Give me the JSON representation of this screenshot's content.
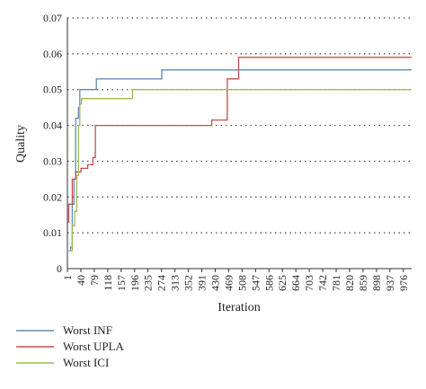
{
  "chart_data": {
    "type": "line",
    "title": "",
    "xlabel": "Iteration",
    "ylabel": "Quality",
    "xlim": [
      1,
      1000
    ],
    "ylim": [
      0,
      0.07
    ],
    "x_ticks": [
      1,
      40,
      79,
      118,
      157,
      196,
      235,
      274,
      313,
      352,
      391,
      430,
      469,
      508,
      547,
      586,
      625,
      664,
      703,
      742,
      781,
      820,
      859,
      898,
      937,
      976
    ],
    "y_ticks": [
      0,
      0.01,
      0.02,
      0.03,
      0.04,
      0.05,
      0.06,
      0.07
    ],
    "y_tick_labels": [
      "0",
      "0.01",
      "0.02",
      "0.03",
      "0.04",
      "0.05",
      "0.06",
      "0.07"
    ],
    "grid": "horizontal dotted",
    "legend_position": "bottom-left",
    "series": [
      {
        "name": "Worst INF",
        "color": "#5b8db8",
        "points": [
          [
            1,
            0.005
          ],
          [
            10,
            0.005
          ],
          [
            10,
            0.006
          ],
          [
            15,
            0.006
          ],
          [
            15,
            0.018
          ],
          [
            20,
            0.018
          ],
          [
            20,
            0.025
          ],
          [
            25,
            0.025
          ],
          [
            25,
            0.042
          ],
          [
            33,
            0.042
          ],
          [
            33,
            0.045
          ],
          [
            37,
            0.045
          ],
          [
            37,
            0.05
          ],
          [
            85,
            0.05
          ],
          [
            85,
            0.053
          ],
          [
            275,
            0.053
          ],
          [
            275,
            0.0555
          ],
          [
            1000,
            0.0555
          ]
        ]
      },
      {
        "name": "Worst UPLA",
        "color": "#c0504d",
        "points": [
          [
            1,
            0.013
          ],
          [
            5,
            0.013
          ],
          [
            5,
            0.018
          ],
          [
            15,
            0.018
          ],
          [
            15,
            0.025
          ],
          [
            25,
            0.025
          ],
          [
            25,
            0.027
          ],
          [
            40,
            0.027
          ],
          [
            40,
            0.028
          ],
          [
            60,
            0.028
          ],
          [
            60,
            0.029
          ],
          [
            75,
            0.029
          ],
          [
            75,
            0.031
          ],
          [
            82,
            0.031
          ],
          [
            82,
            0.04
          ],
          [
            420,
            0.04
          ],
          [
            420,
            0.0415
          ],
          [
            465,
            0.0415
          ],
          [
            465,
            0.053
          ],
          [
            498,
            0.053
          ],
          [
            498,
            0.059
          ],
          [
            1000,
            0.059
          ]
        ]
      },
      {
        "name": "Worst ICI",
        "color": "#9bbb59",
        "points": [
          [
            1,
            0.005
          ],
          [
            15,
            0.005
          ],
          [
            15,
            0.012
          ],
          [
            22,
            0.012
          ],
          [
            22,
            0.016
          ],
          [
            28,
            0.016
          ],
          [
            28,
            0.026
          ],
          [
            33,
            0.026
          ],
          [
            33,
            0.04
          ],
          [
            37,
            0.04
          ],
          [
            37,
            0.046
          ],
          [
            42,
            0.046
          ],
          [
            42,
            0.0475
          ],
          [
            190,
            0.0475
          ],
          [
            190,
            0.05
          ],
          [
            1000,
            0.05
          ]
        ]
      }
    ]
  }
}
